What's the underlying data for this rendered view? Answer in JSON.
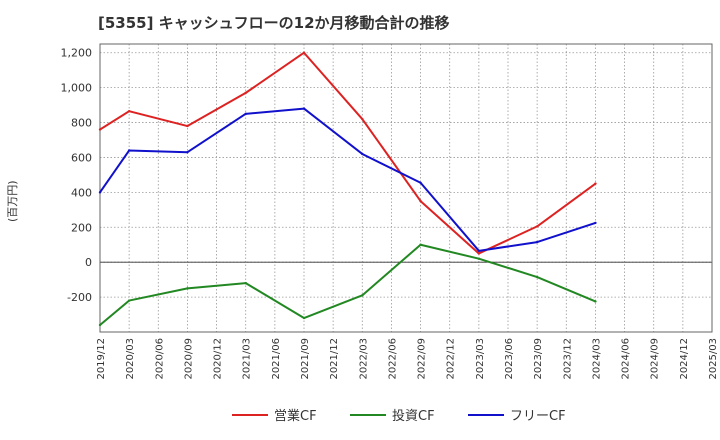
{
  "chart_data": {
    "type": "line",
    "title": "[5355]  キャッシュフローの12か月移動合計の推移",
    "xlabel": "",
    "ylabel": "(百万円)",
    "ylim": [
      -400,
      1250
    ],
    "yticks": [
      -200,
      0,
      200,
      400,
      600,
      800,
      1000,
      1200
    ],
    "ytick_labels": [
      "-200",
      "0",
      "200",
      "400",
      "600",
      "800",
      "1,000",
      "1,200"
    ],
    "x_categories": [
      "2019/12",
      "2020/03",
      "2020/06",
      "2020/09",
      "2020/12",
      "2021/03",
      "2021/06",
      "2021/09",
      "2021/12",
      "2022/03",
      "2022/06",
      "2022/09",
      "2022/12",
      "2023/03",
      "2023/06",
      "2023/09",
      "2023/12",
      "2024/03",
      "2024/06",
      "2024/09",
      "2024/12",
      "2025/03"
    ],
    "grid": true,
    "legend_position": "bottom",
    "series": [
      {
        "name": "営業CF",
        "color": "#dd2222",
        "x": [
          "2019/12",
          "2020/03",
          "2020/09",
          "2021/03",
          "2021/09",
          "2022/03",
          "2022/09",
          "2023/03",
          "2023/09",
          "2024/03"
        ],
        "values": [
          760,
          865,
          780,
          970,
          1200,
          820,
          350,
          50,
          205,
          450
        ]
      },
      {
        "name": "投資CF",
        "color": "#228822",
        "x": [
          "2019/12",
          "2020/03",
          "2020/09",
          "2021/03",
          "2021/09",
          "2022/03",
          "2022/09",
          "2023/03",
          "2023/09",
          "2024/03"
        ],
        "values": [
          -360,
          -220,
          -150,
          -120,
          -320,
          -190,
          100,
          20,
          -85,
          -225
        ]
      },
      {
        "name": "フリーCF",
        "color": "#1111cc",
        "x": [
          "2019/12",
          "2020/03",
          "2020/09",
          "2021/03",
          "2021/09",
          "2022/03",
          "2022/09",
          "2023/03",
          "2023/09",
          "2024/03"
        ],
        "values": [
          400,
          640,
          630,
          850,
          880,
          620,
          455,
          65,
          115,
          225
        ]
      }
    ]
  }
}
